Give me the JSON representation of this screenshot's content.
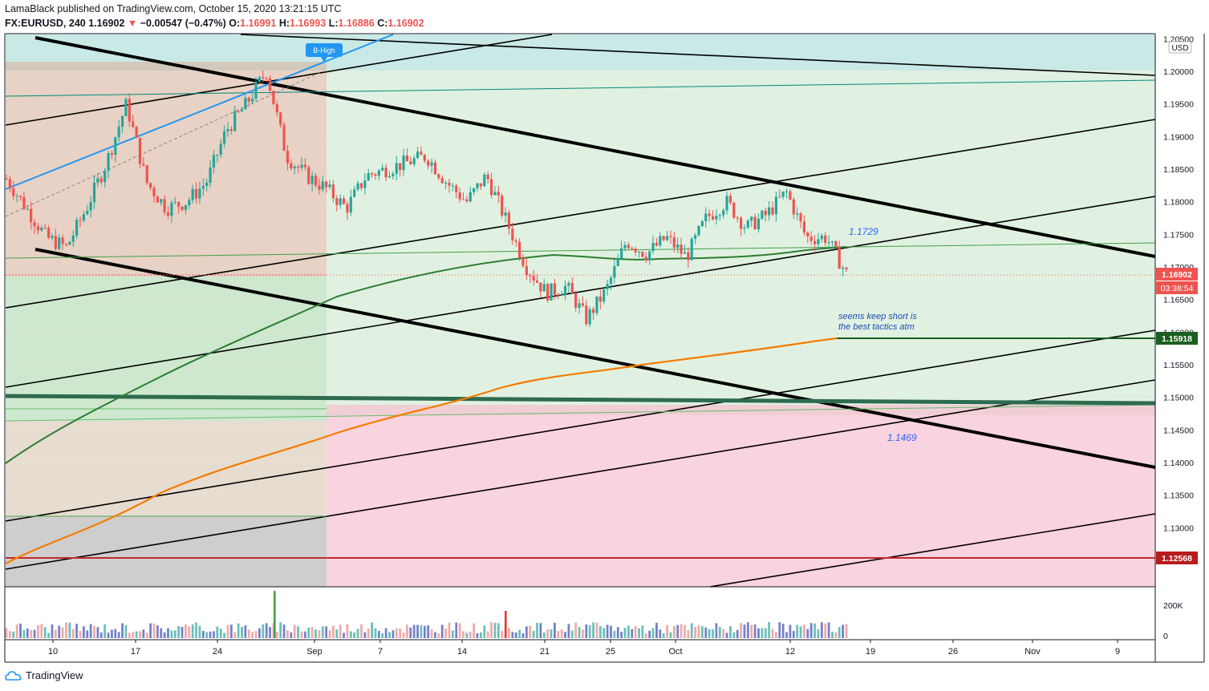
{
  "header": {
    "publish_line": "LamaBlack published on TradingView.com, October 15, 2020 13:21:15 UTC",
    "symbol": "FX:EURUSD, 240",
    "last": "1.16902",
    "change_arrow": "▼",
    "change": "−0.00547 (−0.47%)",
    "open_label": "O:",
    "open": "1.16991",
    "high_label": "H:",
    "high": "1.16993",
    "low_label": "L:",
    "low": "1.16886",
    "close_label": "C:",
    "close": "1.16902"
  },
  "brand": {
    "logo_text": "TradingView"
  },
  "colors": {
    "up": "#26a69a",
    "candle_up": "#26a69a",
    "candle_down": "#ef5350",
    "ma_green": "#2e7d32",
    "ma_orange": "#f57c00",
    "zone_green": "#c8e6c9",
    "zone_red": "#f8bbd0",
    "zone_teal": "#b2dfdb"
  },
  "price_axis": {
    "currency": "USD",
    "ticks": [
      "1.20500",
      "1.20000",
      "1.19500",
      "1.19000",
      "1.18500",
      "1.18000",
      "1.17500",
      "1.17000",
      "1.16500",
      "1.16000",
      "1.15500",
      "1.15000",
      "1.14500",
      "1.14000",
      "1.13500",
      "1.13000",
      "1.12500"
    ]
  },
  "price_badges": {
    "last_price": "1.16902",
    "countdown": "03:38:54",
    "target_level": "1.15918",
    "support_level": "1.12568"
  },
  "volume_axis": {
    "ticks": [
      "200K",
      "0"
    ]
  },
  "time_axis": {
    "ticks": [
      "10",
      "17",
      "24",
      "Sep",
      "7",
      "14",
      "21",
      "25",
      "Oct",
      "12",
      "19",
      "26",
      "Nov",
      "9"
    ]
  },
  "annotations": {
    "b_high": "B-High",
    "level_1": "1.1729",
    "note": "seems keep short is\nthe best tactics atm",
    "level_2": "1.1469"
  },
  "chart_data": {
    "type": "candlestick",
    "symbol": "FX:EURUSD",
    "interval": "240",
    "ylim": [
      1.122,
      1.206
    ],
    "x_range": [
      "Aug 6",
      "Nov 13"
    ],
    "key_levels": {
      "last": 1.16902,
      "target": 1.15918,
      "support": 1.12568,
      "b_high": 1.2011,
      "marked_1": 1.1729,
      "marked_2": 1.1469
    },
    "close_path": [
      {
        "x": "Aug 6",
        "y": 1.1835
      },
      {
        "x": "Aug 7",
        "y": 1.179
      },
      {
        "x": "Aug 10",
        "y": 1.1745
      },
      {
        "x": "Aug 12",
        "y": 1.173
      },
      {
        "x": "Aug 13",
        "y": 1.179
      },
      {
        "x": "Aug 17",
        "y": 1.186
      },
      {
        "x": "Aug 18",
        "y": 1.195
      },
      {
        "x": "Aug 20",
        "y": 1.183
      },
      {
        "x": "Aug 21",
        "y": 1.179
      },
      {
        "x": "Aug 24",
        "y": 1.18
      },
      {
        "x": "Aug 26",
        "y": 1.183
      },
      {
        "x": "Aug 28",
        "y": 1.191
      },
      {
        "x": "Aug 31",
        "y": 1.195
      },
      {
        "x": "Sep 1",
        "y": 1.2
      },
      {
        "x": "Sep 2",
        "y": 1.187
      },
      {
        "x": "Sep 4",
        "y": 1.184
      },
      {
        "x": "Sep 7",
        "y": 1.182
      },
      {
        "x": "Sep 9",
        "y": 1.179
      },
      {
        "x": "Sep 10",
        "y": 1.184
      },
      {
        "x": "Sep 11",
        "y": 1.185
      },
      {
        "x": "Sep 14",
        "y": 1.186
      },
      {
        "x": "Sep 15",
        "y": 1.187
      },
      {
        "x": "Sep 16",
        "y": 1.183
      },
      {
        "x": "Sep 17",
        "y": 1.18
      },
      {
        "x": "Sep 18",
        "y": 1.184
      },
      {
        "x": "Sep 21",
        "y": 1.177
      },
      {
        "x": "Sep 22",
        "y": 1.17
      },
      {
        "x": "Sep 23",
        "y": 1.166
      },
      {
        "x": "Sep 24",
        "y": 1.167
      },
      {
        "x": "Sep 25",
        "y": 1.162
      },
      {
        "x": "Sep 28",
        "y": 1.1665
      },
      {
        "x": "Sep 29",
        "y": 1.174
      },
      {
        "x": "Sep 30",
        "y": 1.172
      },
      {
        "x": "Oct 1",
        "y": 1.1745
      },
      {
        "x": "Oct 2",
        "y": 1.1715
      },
      {
        "x": "Oct 5",
        "y": 1.1775
      },
      {
        "x": "Oct 6",
        "y": 1.18
      },
      {
        "x": "Oct 7",
        "y": 1.176
      },
      {
        "x": "Oct 9",
        "y": 1.178
      },
      {
        "x": "Oct 12",
        "y": 1.1815
      },
      {
        "x": "Oct 13",
        "y": 1.1745
      },
      {
        "x": "Oct 14",
        "y": 1.1745
      },
      {
        "x": "Oct 15",
        "y": 1.169
      }
    ]
  }
}
